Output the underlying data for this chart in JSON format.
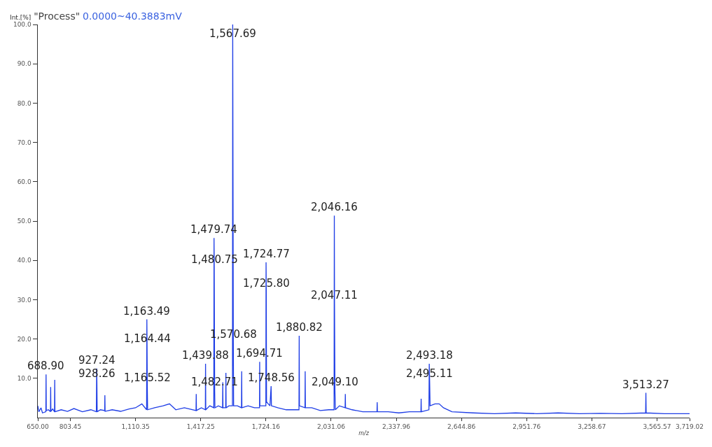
{
  "chart_data": {
    "type": "line",
    "title": "\"Process\"",
    "subtitle": "0.0000~40.3883mV",
    "xlabel": "m/z",
    "ylabel": "Int.[%]",
    "color": "#1f3ee6",
    "x": [
      650,
      655,
      665,
      672,
      687.9,
      688.9,
      689.9,
      700,
      709.6,
      710.6,
      711.6,
      720,
      728.7,
      729.7,
      730.7,
      760,
      790,
      820,
      860,
      900,
      925.7,
      927.24,
      928.26,
      929.5,
      945,
      964.8,
      965.8,
      966.8,
      1000,
      1040,
      1080,
      1110,
      1140,
      1162.3,
      1163.49,
      1164.44,
      1165.52,
      1167,
      1200,
      1240,
      1270,
      1300,
      1340,
      1395,
      1396,
      1397,
      1420,
      1438.9,
      1439.88,
      1440.9,
      1460,
      1478.7,
      1479.74,
      1480.75,
      1482.71,
      1484,
      1500,
      1520,
      1521,
      1522,
      1534.7,
      1535.7,
      1536.7,
      1550,
      1566.7,
      1567.69,
      1570.68,
      1572,
      1590,
      1609,
      1610,
      1611,
      1640,
      1670,
      1694,
      1694.71,
      1695.7,
      1710,
      1723.8,
      1724.77,
      1725.8,
      1727,
      1743,
      1748.56,
      1750,
      1780,
      1820,
      1860,
      1879.8,
      1880.82,
      1882,
      1908,
      1909,
      1910,
      1940,
      1980,
      2020,
      2045,
      2046.16,
      2047.11,
      2049.1,
      2051,
      2070,
      2097,
      2098,
      2099,
      2130,
      2180,
      2247,
      2248,
      2249,
      2300,
      2350,
      2400,
      2454,
      2455,
      2456,
      2491.6,
      2493.18,
      2495.11,
      2497,
      2520,
      2540,
      2560,
      2600,
      2700,
      2800,
      2900,
      3000,
      3100,
      3200,
      3300,
      3400,
      3512,
      3513.27,
      3514.5,
      3600,
      3719.02
    ],
    "values": [
      3,
      1.5,
      2.5,
      1.2,
      1.5,
      11,
      1.8,
      2,
      1.5,
      7.8,
      1.6,
      2.2,
      1.5,
      9.6,
      1.5,
      2,
      1.6,
      2.3,
      1.5,
      2,
      1.5,
      12.5,
      9,
      1.5,
      2,
      1.8,
      5.7,
      1.6,
      2,
      1.6,
      2.2,
      2.5,
      3.5,
      2,
      25,
      18,
      8,
      2,
      2.5,
      3,
      3.5,
      2,
      2.5,
      1.8,
      6,
      1.8,
      2.5,
      2,
      13.7,
      2,
      3,
      2.5,
      45.7,
      38,
      7,
      2.5,
      3,
      2.5,
      9,
      2.5,
      2.5,
      11.4,
      2.5,
      3,
      3,
      100,
      19,
      3,
      3,
      2.5,
      11.8,
      2.5,
      3,
      2.5,
      2.5,
      14.2,
      3,
      3,
      3,
      39.5,
      32,
      4,
      3,
      8,
      3,
      2.5,
      2,
      2,
      2,
      20.8,
      3,
      2.5,
      11.8,
      2.5,
      2.5,
      1.8,
      2,
      2,
      51.4,
      29,
      7,
      2,
      3,
      2.5,
      6,
      2.5,
      2,
      1.5,
      1.5,
      3.9,
      1.5,
      1.5,
      1.2,
      1.5,
      1.5,
      4.8,
      1.5,
      2,
      13.7,
      9,
      3,
      3.5,
      3.5,
      2.5,
      1.5,
      1.2,
      1,
      1.2,
      1,
      1.2,
      1,
      1.1,
      1,
      1.2,
      6.3,
      1.2,
      1,
      1
    ],
    "xlim": [
      650,
      3719.02
    ],
    "xticks": [
      {
        "value": 650,
        "label": "650.00"
      },
      {
        "value": 803.45,
        "label": "803.45"
      },
      {
        "value": 1110.35,
        "label": "1,110.35"
      },
      {
        "value": 1417.25,
        "label": "1,417.25"
      },
      {
        "value": 1724.16,
        "label": "1,724.16"
      },
      {
        "value": 2031.06,
        "label": "2,031.06"
      },
      {
        "value": 2337.96,
        "label": "2,337.96"
      },
      {
        "value": 2644.86,
        "label": "2,644.86"
      },
      {
        "value": 2951.76,
        "label": "2,951.76"
      },
      {
        "value": 3258.67,
        "label": "3,258.67"
      },
      {
        "value": 3565.57,
        "label": "3,565.57"
      },
      {
        "value": 3719.02,
        "label": "3,719.02"
      }
    ],
    "ylim": [
      0,
      100
    ],
    "yticks": [
      {
        "value": 10,
        "label": "10.0"
      },
      {
        "value": 20,
        "label": "20.0"
      },
      {
        "value": 30,
        "label": "30.0"
      },
      {
        "value": 40,
        "label": "40.0"
      },
      {
        "value": 50,
        "label": "50.0"
      },
      {
        "value": 60,
        "label": "60.0"
      },
      {
        "value": 70,
        "label": "70.0"
      },
      {
        "value": 80,
        "label": "80.0"
      },
      {
        "value": 90,
        "label": "90.0"
      },
      {
        "value": 100,
        "label": "100.0"
      }
    ],
    "annotations": [
      {
        "text": "688.90",
        "x": 688.9,
        "y": 11
      },
      {
        "text": "927.24",
        "x": 927.24,
        "y": 12.5
      },
      {
        "text": "928.26",
        "x": 928.26,
        "y": 9
      },
      {
        "text": "1,163.49",
        "x": 1163.49,
        "y": 25
      },
      {
        "text": "1,164.44",
        "x": 1164.44,
        "y": 18
      },
      {
        "text": "1,165.52",
        "x": 1165.52,
        "y": 8
      },
      {
        "text": "1,439.88",
        "x": 1439.88,
        "y": 13.7
      },
      {
        "text": "1,479.74",
        "x": 1479.74,
        "y": 45.7
      },
      {
        "text": "1,480.75",
        "x": 1480.75,
        "y": 38
      },
      {
        "text": "1,482.71",
        "x": 1482.71,
        "y": 7
      },
      {
        "text": "1,567.69",
        "x": 1567.69,
        "y": 100
      },
      {
        "text": "1,570.68",
        "x": 1570.68,
        "y": 19
      },
      {
        "text": "1,694.71",
        "x": 1694.71,
        "y": 14.2
      },
      {
        "text": "1,724.77",
        "x": 1724.77,
        "y": 39.5
      },
      {
        "text": "1,725.80",
        "x": 1725.8,
        "y": 32
      },
      {
        "text": "1,748.56",
        "x": 1748.56,
        "y": 8
      },
      {
        "text": "1,880.82",
        "x": 1880.82,
        "y": 20.8
      },
      {
        "text": "2,046.16",
        "x": 2046.16,
        "y": 51.4
      },
      {
        "text": "2,047.11",
        "x": 2047.11,
        "y": 29
      },
      {
        "text": "2,049.10",
        "x": 2049.1,
        "y": 7
      },
      {
        "text": "2,493.18",
        "x": 2493.18,
        "y": 13.7
      },
      {
        "text": "2,495.11",
        "x": 2495.11,
        "y": 9
      },
      {
        "text": "3,513.27",
        "x": 3513.27,
        "y": 6.3
      }
    ]
  }
}
